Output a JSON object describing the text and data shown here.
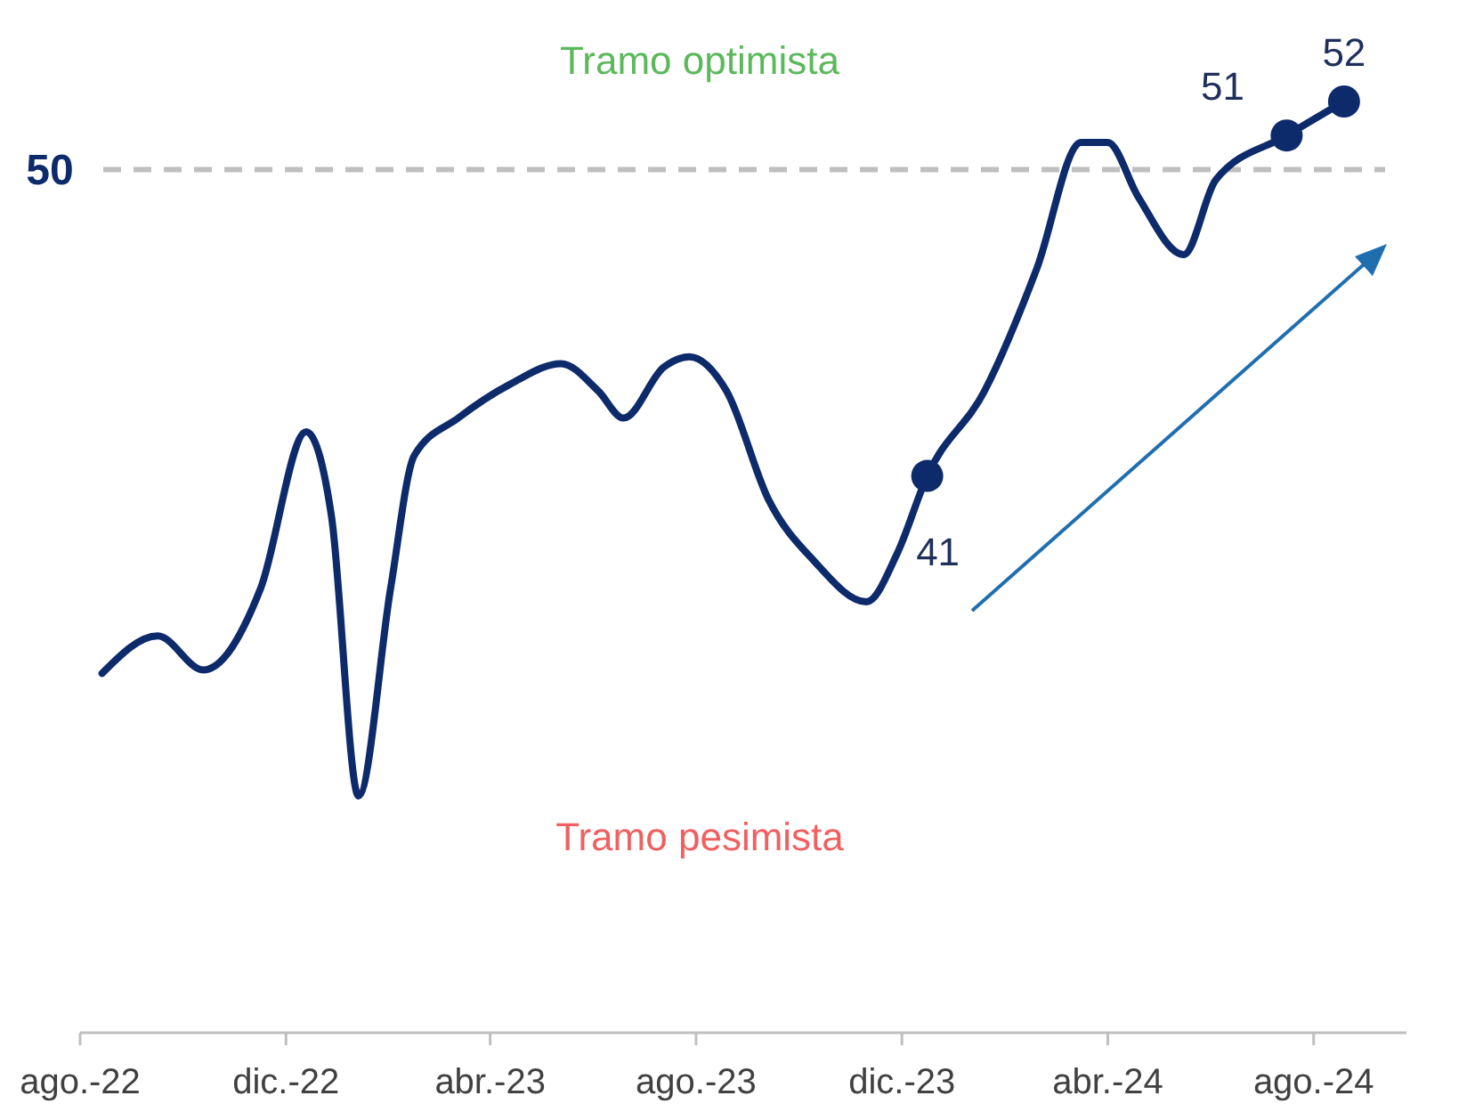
{
  "chart_data": {
    "type": "line",
    "x": [
      "2022-08-14",
      "2022-09-16",
      "2022-10-13",
      "2022-11-16",
      "2022-12-13",
      "2022-12-28",
      "2023-01-13",
      "2023-02-01",
      "2023-02-15",
      "2023-03-13",
      "2023-04-13",
      "2023-05-13",
      "2023-06-04",
      "2023-06-19",
      "2023-07-13",
      "2023-07-28",
      "2023-08-19",
      "2023-09-13",
      "2023-10-10",
      "2023-11-10",
      "2023-11-28",
      "2023-12-16",
      "2024-01-19",
      "2024-02-19",
      "2024-03-16",
      "2024-04-01",
      "2024-04-19",
      "2024-05-16",
      "2024-06-04",
      "2024-07-16",
      "2024-08-19"
    ],
    "series": [
      {
        "color": "#0d2a6b",
        "values": [
          35.2,
          36.3,
          35.3,
          37.7,
          42.3,
          39.8,
          31.6,
          37.7,
          41.6,
          42.7,
          43.7,
          44.3,
          43.5,
          42.7,
          44.2,
          44.5,
          43.5,
          40.3,
          38.5,
          37.3,
          38.7,
          41,
          43.5,
          47.1,
          50.8,
          50.8,
          49.2,
          47.5,
          49.7,
          51,
          52
        ],
        "value_labels": [
          null,
          null,
          null,
          null,
          null,
          null,
          null,
          null,
          null,
          null,
          null,
          null,
          null,
          null,
          null,
          null,
          null,
          null,
          null,
          null,
          null,
          "41",
          null,
          null,
          null,
          null,
          null,
          null,
          null,
          "51",
          "52"
        ]
      }
    ],
    "xlim": [
      "2022-08-01",
      "2024-09-25"
    ],
    "xticks": [
      {
        "value": "2022-08-01",
        "label": "ago.-22"
      },
      {
        "value": "2022-12-01",
        "label": "dic.-22"
      },
      {
        "value": "2023-04-01",
        "label": "abr.-23"
      },
      {
        "value": "2023-08-01",
        "label": "ago.-23"
      },
      {
        "value": "2023-12-01",
        "label": "dic.-23"
      },
      {
        "value": "2024-04-01",
        "label": "abr.-24"
      },
      {
        "value": "2024-08-01",
        "label": "ago.-24"
      }
    ],
    "tick_labels": "x",
    "ref_lines": [
      {
        "axis": "y",
        "value": 50,
        "label": "50",
        "color": "#bfbfbf",
        "line_style": "dashed"
      }
    ],
    "annotations": [
      "Tramo optimista",
      "Tramo pesimista"
    ]
  }
}
